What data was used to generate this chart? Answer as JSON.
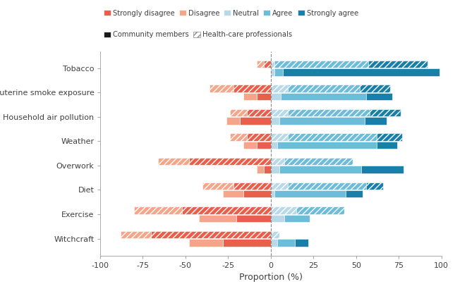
{
  "categories": [
    "Tobacco",
    "Intrauterine smoke exposure",
    "Household air pollution",
    "Weather",
    "Overwork",
    "Diet",
    "Exercise",
    "Witchcraft"
  ],
  "colors": {
    "strongly_disagree": "#e8604c",
    "disagree": "#f4a58a",
    "neutral": "#b8d9e8",
    "agree": "#6cbcda",
    "strongly_agree": "#1a7fa8"
  },
  "community": {
    "strongly_disagree": [
      0,
      -8,
      -18,
      -8,
      -4,
      -16,
      -20,
      -28
    ],
    "disagree": [
      0,
      -8,
      -8,
      -8,
      -4,
      -12,
      -22,
      -20
    ],
    "neutral": [
      2,
      6,
      5,
      4,
      5,
      2,
      8,
      4
    ],
    "agree": [
      5,
      50,
      50,
      58,
      48,
      42,
      15,
      10
    ],
    "strongly_agree": [
      92,
      15,
      13,
      12,
      25,
      10,
      0,
      8
    ]
  },
  "hcp": {
    "strongly_disagree": [
      -4,
      -22,
      -14,
      -14,
      -48,
      -22,
      -52,
      -70
    ],
    "disagree": [
      -4,
      -14,
      -10,
      -10,
      -18,
      -18,
      -28,
      -18
    ],
    "neutral": [
      2,
      10,
      10,
      10,
      8,
      10,
      15,
      5
    ],
    "agree": [
      55,
      42,
      48,
      52,
      40,
      46,
      28,
      0
    ],
    "strongly_agree": [
      35,
      18,
      18,
      15,
      0,
      10,
      0,
      0
    ]
  },
  "xlabel": "Proportion (%)",
  "xlim": [
    -100,
    100
  ],
  "xticks": [
    -100,
    -75,
    -50,
    -25,
    0,
    25,
    50,
    75,
    100
  ],
  "background_color": "#ffffff",
  "text_color": "#404040",
  "bar_height": 0.3,
  "bar_gap": 0.03,
  "legend_ncol_row1": 5,
  "legend_ncol_row2": 2
}
